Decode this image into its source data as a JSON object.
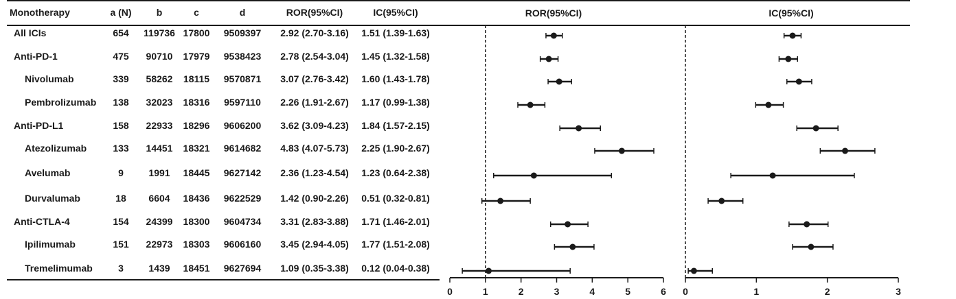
{
  "table": {
    "headers": [
      "Monotherapy",
      "a (N)",
      "b",
      "c",
      "d",
      "ROR(95%CI)",
      "IC(95%CI)"
    ],
    "rows": [
      {
        "name": "All ICIs",
        "indent": false,
        "a": "654",
        "b": "119736",
        "c": "17800",
        "d": "9509397",
        "ror": "2.92 (2.70-3.16)",
        "ic": "1.51 (1.39-1.63)"
      },
      {
        "name": "Anti-PD-1",
        "indent": false,
        "a": "475",
        "b": "90710",
        "c": "17979",
        "d": "9538423",
        "ror": "2.78 (2.54-3.04)",
        "ic": "1.45 (1.32-1.58)"
      },
      {
        "name": "Nivolumab",
        "indent": true,
        "a": "339",
        "b": "58262",
        "c": "18115",
        "d": "9570871",
        "ror": "3.07 (2.76-3.42)",
        "ic": "1.60 (1.43-1.78)"
      },
      {
        "name": "Pembrolizumab",
        "indent": true,
        "a": "138",
        "b": "32023",
        "c": "18316",
        "d": "9597110",
        "ror": "2.26 (1.91-2.67)",
        "ic": "1.17 (0.99-1.38)"
      },
      {
        "name": "Anti-PD-L1",
        "indent": false,
        "a": "158",
        "b": "22933",
        "c": "18296",
        "d": "9606200",
        "ror": "3.62 (3.09-4.23)",
        "ic": "1.84 (1.57-2.15)"
      },
      {
        "name": "Atezolizumab",
        "indent": true,
        "a": "133",
        "b": "14451",
        "c": "18321",
        "d": "9614682",
        "ror": "4.83 (4.07-5.73)",
        "ic": "2.25 (1.90-2.67)"
      },
      {
        "name": "Avelumab",
        "indent": true,
        "a": "9",
        "b": "1991",
        "c": "18445",
        "d": "9627142",
        "ror": "2.36 (1.23-4.54)",
        "ic": "1.23 (0.64-2.38)"
      },
      {
        "name": "Durvalumab",
        "indent": true,
        "a": "18",
        "b": "6604",
        "c": "18436",
        "d": "9622529",
        "ror": "1.42 (0.90-2.26)",
        "ic": "0.51 (0.32-0.81)"
      },
      {
        "name": "Anti-CTLA-4",
        "indent": false,
        "a": "154",
        "b": "24399",
        "c": "18300",
        "d": "9604734",
        "ror": "3.31 (2.83-3.88)",
        "ic": "1.71 (1.46-2.01)"
      },
      {
        "name": "Ipilimumab",
        "indent": true,
        "a": "151",
        "b": "22973",
        "c": "18303",
        "d": "9606160",
        "ror": "3.45 (2.94-4.05)",
        "ic": "1.77 (1.51-2.08)"
      },
      {
        "name": "Tremelimumab",
        "indent": true,
        "a": "3",
        "b": "1439",
        "c": "18451",
        "d": "9627694",
        "ror": "1.09 (0.35-3.38)",
        "ic": "0.12 (0.04-0.38)"
      }
    ]
  },
  "chart_data": [
    {
      "type": "scatter",
      "title": "ROR(95%CI)",
      "xlim": [
        0,
        6
      ],
      "xticks": [
        "0",
        "1",
        "2",
        "3",
        "4",
        "5",
        "6"
      ],
      "reference_line": 1,
      "categories": [
        "All ICIs",
        "Anti-PD-1",
        "Nivolumab",
        "Pembrolizumab",
        "Anti-PD-L1",
        "Atezolizumab",
        "Avelumab",
        "Durvalumab",
        "Anti-CTLA-4",
        "Ipilimumab",
        "Tremelimumab"
      ],
      "values": [
        2.92,
        2.78,
        3.07,
        2.26,
        3.62,
        4.83,
        2.36,
        1.42,
        3.31,
        3.45,
        1.09
      ],
      "lower": [
        2.7,
        2.54,
        2.76,
        1.91,
        3.09,
        4.07,
        1.23,
        0.9,
        2.83,
        2.94,
        0.35
      ],
      "upper": [
        3.16,
        3.04,
        3.42,
        2.67,
        4.23,
        5.73,
        4.54,
        2.26,
        3.88,
        4.05,
        3.38
      ]
    },
    {
      "type": "scatter",
      "title": "IC(95%CI)",
      "xlim": [
        0,
        3
      ],
      "xticks": [
        "0",
        "1",
        "2",
        "3"
      ],
      "reference_line": 0,
      "categories": [
        "All ICIs",
        "Anti-PD-1",
        "Nivolumab",
        "Pembrolizumab",
        "Anti-PD-L1",
        "Atezolizumab",
        "Avelumab",
        "Durvalumab",
        "Anti-CTLA-4",
        "Ipilimumab",
        "Tremelimumab"
      ],
      "values": [
        1.51,
        1.45,
        1.6,
        1.17,
        1.84,
        2.25,
        1.23,
        0.51,
        1.71,
        1.77,
        0.12
      ],
      "lower": [
        1.39,
        1.32,
        1.43,
        0.99,
        1.57,
        1.9,
        0.64,
        0.32,
        1.46,
        1.51,
        0.04
      ],
      "upper": [
        1.63,
        1.58,
        1.78,
        1.38,
        2.15,
        2.67,
        2.38,
        0.81,
        2.01,
        2.08,
        0.38
      ]
    }
  ],
  "colors": {
    "ink": "#1a1a1a",
    "background": "#ffffff"
  }
}
